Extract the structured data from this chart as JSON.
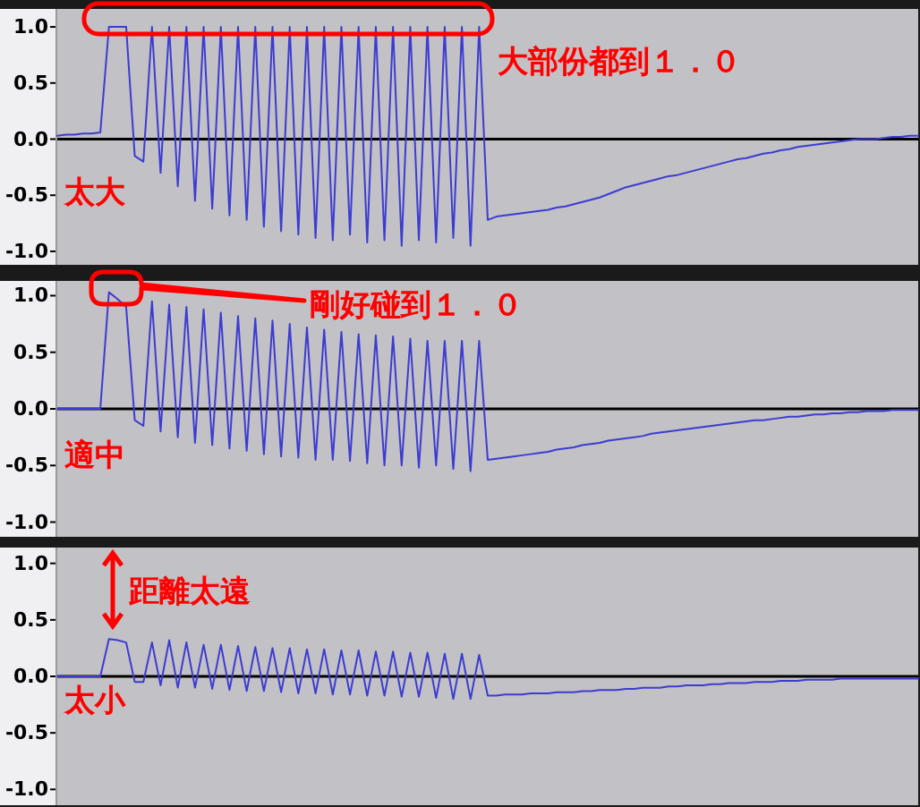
{
  "chart_data": [
    {
      "type": "line",
      "ylim": [
        -1.12,
        1.16
      ],
      "tick_labels": "y",
      "categories": [
        null,
        null,
        null,
        null,
        null,
        null,
        null,
        null,
        null,
        null,
        null,
        null,
        null,
        null,
        null,
        null,
        null,
        null,
        null,
        null,
        null,
        null,
        null,
        null,
        null,
        null,
        null,
        null,
        null,
        null,
        null,
        null,
        null,
        null,
        null,
        null,
        null,
        null,
        null,
        null,
        null,
        null,
        null,
        null,
        null,
        null,
        null,
        null,
        null,
        null,
        null,
        null,
        null,
        null,
        null,
        null,
        null,
        null,
        null,
        null,
        null,
        null,
        null,
        null,
        null,
        null,
        null,
        null,
        null,
        null,
        null,
        null,
        null,
        null,
        null,
        null,
        null,
        null,
        null,
        null,
        null,
        null,
        null,
        null,
        null,
        null,
        null,
        null,
        null,
        null,
        null,
        null,
        null,
        null,
        null,
        null,
        null,
        null,
        null,
        null,
        null
      ],
      "yticks": [
        {
          "value": 1,
          "label": "1.0"
        },
        {
          "value": 0.5,
          "label": "0.5"
        },
        {
          "value": 0,
          "label": "0.0"
        },
        {
          "value": -0.5,
          "label": "-0.5"
        },
        {
          "value": -1,
          "label": "-1.0"
        }
      ],
      "ref_lines": [
        {
          "axis": "y",
          "value": 0,
          "color": "#000000"
        }
      ],
      "annotations": [
        "大部份都到１．０",
        "太大"
      ],
      "series": [
        {
          "color": "#3c3cd2",
          "values": [
            0.03,
            0.04,
            0.04,
            0.05,
            0.05,
            0.06,
            1,
            1,
            1,
            -0.15,
            -0.2,
            1,
            -0.3,
            1,
            -0.42,
            1,
            -0.55,
            1,
            -0.62,
            1,
            -0.68,
            1,
            -0.72,
            1,
            -0.78,
            1,
            -0.82,
            1,
            -0.85,
            1,
            -0.88,
            1,
            -0.9,
            1,
            -0.85,
            1,
            -0.92,
            1,
            -0.9,
            1,
            -0.95,
            1,
            -0.9,
            1,
            -0.92,
            1,
            -0.88,
            1,
            -0.95,
            1,
            -0.72,
            -0.69,
            -0.68,
            -0.67,
            -0.66,
            -0.65,
            -0.64,
            -0.63,
            -0.61,
            -0.6,
            -0.58,
            -0.56,
            -0.54,
            -0.52,
            -0.49,
            -0.46,
            -0.43,
            -0.41,
            -0.39,
            -0.37,
            -0.35,
            -0.33,
            -0.32,
            -0.3,
            -0.28,
            -0.26,
            -0.24,
            -0.22,
            -0.2,
            -0.18,
            -0.17,
            -0.15,
            -0.13,
            -0.12,
            -0.1,
            -0.09,
            -0.07,
            -0.06,
            -0.05,
            -0.04,
            -0.03,
            -0.02,
            -0.01,
            0,
            0,
            0,
            0.01,
            0.02,
            0.02,
            0.03,
            0.03
          ]
        }
      ]
    },
    {
      "type": "line",
      "ylim": [
        -1.13,
        1.13
      ],
      "tick_labels": "y",
      "categories": [
        null,
        null,
        null,
        null,
        null,
        null,
        null,
        null,
        null,
        null,
        null,
        null,
        null,
        null,
        null,
        null,
        null,
        null,
        null,
        null,
        null,
        null,
        null,
        null,
        null,
        null,
        null,
        null,
        null,
        null,
        null,
        null,
        null,
        null,
        null,
        null,
        null,
        null,
        null,
        null,
        null,
        null,
        null,
        null,
        null,
        null,
        null,
        null,
        null,
        null,
        null,
        null,
        null,
        null,
        null,
        null,
        null,
        null,
        null,
        null,
        null,
        null,
        null,
        null,
        null,
        null,
        null,
        null,
        null,
        null,
        null,
        null,
        null,
        null,
        null,
        null,
        null,
        null,
        null,
        null,
        null,
        null,
        null,
        null,
        null,
        null,
        null,
        null,
        null,
        null,
        null,
        null,
        null,
        null,
        null,
        null,
        null,
        null,
        null,
        null,
        null
      ],
      "yticks": [
        {
          "value": 1,
          "label": "1.0"
        },
        {
          "value": 0.5,
          "label": "0.5"
        },
        {
          "value": 0,
          "label": "0.0"
        },
        {
          "value": -0.5,
          "label": "-0.5"
        },
        {
          "value": -1,
          "label": "-1.0"
        }
      ],
      "ref_lines": [
        {
          "axis": "y",
          "value": 0,
          "color": "#000000"
        }
      ],
      "annotations": [
        "剛好碰到１．０",
        "適中"
      ],
      "series": [
        {
          "color": "#3c3cd2",
          "values": [
            0,
            0,
            0,
            0,
            0,
            0,
            1.03,
            0.97,
            0.9,
            -0.1,
            -0.15,
            0.95,
            -0.2,
            0.92,
            -0.25,
            0.9,
            -0.3,
            0.88,
            -0.32,
            0.85,
            -0.35,
            0.82,
            -0.37,
            0.8,
            -0.4,
            0.78,
            -0.42,
            0.75,
            -0.43,
            0.72,
            -0.45,
            0.7,
            -0.45,
            0.68,
            -0.46,
            0.66,
            -0.48,
            0.65,
            -0.5,
            0.64,
            -0.5,
            0.62,
            -0.52,
            0.6,
            -0.5,
            0.6,
            -0.53,
            0.6,
            -0.55,
            0.6,
            -0.45,
            -0.44,
            -0.43,
            -0.42,
            -0.41,
            -0.4,
            -0.39,
            -0.38,
            -0.36,
            -0.35,
            -0.34,
            -0.32,
            -0.31,
            -0.3,
            -0.28,
            -0.27,
            -0.26,
            -0.25,
            -0.24,
            -0.22,
            -0.21,
            -0.2,
            -0.19,
            -0.18,
            -0.17,
            -0.16,
            -0.15,
            -0.14,
            -0.13,
            -0.12,
            -0.11,
            -0.1,
            -0.1,
            -0.09,
            -0.08,
            -0.07,
            -0.07,
            -0.06,
            -0.05,
            -0.05,
            -0.04,
            -0.04,
            -0.03,
            -0.03,
            -0.02,
            -0.02,
            -0.02,
            -0.01,
            -0.01,
            -0.01,
            -0.01
          ]
        }
      ]
    },
    {
      "type": "line",
      "ylim": [
        -1.14,
        1.14
      ],
      "tick_labels": "y",
      "categories": [
        null,
        null,
        null,
        null,
        null,
        null,
        null,
        null,
        null,
        null,
        null,
        null,
        null,
        null,
        null,
        null,
        null,
        null,
        null,
        null,
        null,
        null,
        null,
        null,
        null,
        null,
        null,
        null,
        null,
        null,
        null,
        null,
        null,
        null,
        null,
        null,
        null,
        null,
        null,
        null,
        null,
        null,
        null,
        null,
        null,
        null,
        null,
        null,
        null,
        null,
        null,
        null,
        null,
        null,
        null,
        null,
        null,
        null,
        null,
        null,
        null,
        null,
        null,
        null,
        null,
        null,
        null,
        null,
        null,
        null,
        null,
        null,
        null,
        null,
        null,
        null,
        null,
        null,
        null,
        null,
        null,
        null,
        null,
        null,
        null,
        null,
        null,
        null,
        null,
        null,
        null,
        null,
        null,
        null,
        null,
        null,
        null,
        null,
        null,
        null,
        null
      ],
      "yticks": [
        {
          "value": 1,
          "label": "1.0"
        },
        {
          "value": 0.5,
          "label": "0.5"
        },
        {
          "value": 0,
          "label": "0.0"
        },
        {
          "value": -0.5,
          "label": "-0.5"
        },
        {
          "value": -1,
          "label": "-1.0"
        }
      ],
      "ref_lines": [
        {
          "axis": "y",
          "value": 0,
          "color": "#000000"
        }
      ],
      "annotations": [
        "距離太遠",
        "太小"
      ],
      "series": [
        {
          "color": "#3c3cd2",
          "values": [
            0,
            0,
            0,
            0,
            0,
            0,
            0.33,
            0.32,
            0.3,
            -0.05,
            -0.05,
            0.3,
            -0.08,
            0.32,
            -0.1,
            0.3,
            -0.1,
            0.28,
            -0.11,
            0.28,
            -0.12,
            0.27,
            -0.13,
            0.26,
            -0.13,
            0.25,
            -0.14,
            0.25,
            -0.15,
            0.24,
            -0.15,
            0.24,
            -0.16,
            0.23,
            -0.16,
            0.23,
            -0.17,
            0.22,
            -0.17,
            0.22,
            -0.18,
            0.21,
            -0.18,
            0.21,
            -0.19,
            0.2,
            -0.2,
            0.2,
            -0.2,
            0.19,
            -0.17,
            -0.17,
            -0.16,
            -0.16,
            -0.16,
            -0.15,
            -0.15,
            -0.15,
            -0.14,
            -0.14,
            -0.14,
            -0.13,
            -0.13,
            -0.12,
            -0.12,
            -0.12,
            -0.11,
            -0.11,
            -0.1,
            -0.1,
            -0.1,
            -0.09,
            -0.09,
            -0.08,
            -0.08,
            -0.08,
            -0.07,
            -0.07,
            -0.06,
            -0.06,
            -0.06,
            -0.05,
            -0.05,
            -0.05,
            -0.04,
            -0.04,
            -0.04,
            -0.03,
            -0.03,
            -0.03,
            -0.03,
            -0.02,
            -0.02,
            -0.02,
            -0.02,
            -0.02,
            -0.02,
            -0.02,
            -0.02,
            -0.02,
            -0.02
          ]
        }
      ]
    }
  ]
}
